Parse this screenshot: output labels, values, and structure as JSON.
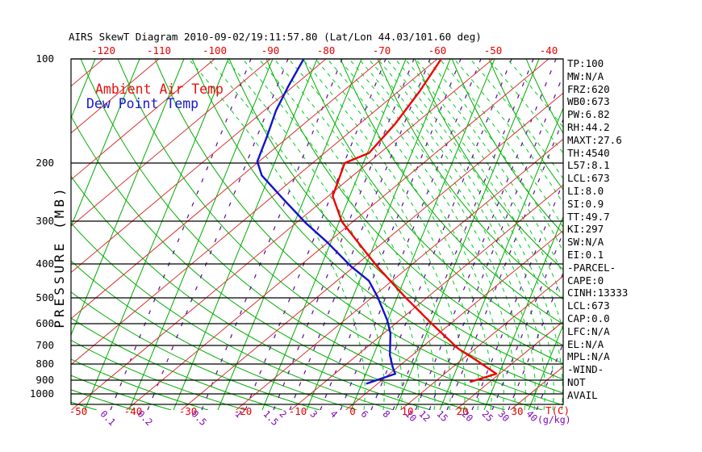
{
  "title": "AIRS SkewT Diagram 2010-09-02/19:11:57.80 (Lat/Lon 44.03/101.60 deg)",
  "legend": {
    "air_temp_label": "Ambient Air Temp",
    "dew_point_label": "Dew Point Temp"
  },
  "axes": {
    "pressure_axis_label": "PRESSURE (MB)",
    "pressure_ticks": [
      "100",
      "200",
      "300",
      "400",
      "500",
      "600",
      "700",
      "800",
      "900",
      "1000"
    ],
    "top_temp_ticks": [
      "-120",
      "-110",
      "-100",
      "-90",
      "-80",
      "-70",
      "-60",
      "-50",
      "-40"
    ],
    "bottom_temp_ticks": [
      "-50",
      "-40",
      "-30",
      "-20",
      "-10",
      "0",
      "10",
      "20",
      "30"
    ],
    "temp_unit_label": "T(C)",
    "mixing_ratio_ticks": [
      "0.1",
      "0.2",
      "0.5",
      "1",
      "1.5",
      "2",
      "3",
      "4",
      "6",
      "8",
      "10",
      "12",
      "15",
      "20",
      "25",
      "30",
      "40"
    ],
    "mixing_ratio_unit_label": "(g/kg)"
  },
  "stats_panel": [
    "TP:100",
    "MW:N/A",
    "FRZ:620",
    "WB0:673",
    "PW:6.82",
    "RH:44.2",
    "MAXT:27.6",
    "TH:4540",
    "L57:8.1",
    "LCL:673",
    "LI:8.0",
    "SI:0.9",
    "TT:49.7",
    "KI:297",
    "SW:N/A",
    "EI:0.1",
    "-PARCEL-",
    "CAPE:0",
    "CINH:13333",
    "LCL:673",
    "CAP:0.0",
    "LFC:N/A",
    "EL:N/A",
    "MPL:N/A",
    "-WIND-",
    "NOT",
    "AVAIL"
  ],
  "colors": {
    "isotherm": "#d83232",
    "dry_adiabat": "#00ad00",
    "steep_green_line": "#00ad00",
    "moist_adiabat_dashed": "#00cc22",
    "mixing_ratio_line": "#5a0a96",
    "frame": "#000000",
    "air_temp_curve": "#f00000",
    "dew_point_curve": "#1212cc",
    "temp_label_red": "#e80000",
    "mixing_label_purple": "#7d05b3"
  },
  "chart_data": {
    "type": "line",
    "title": "AIRS SkewT Diagram 2010-09-02/19:11:57.80 (Lat/Lon 44.03/101.60 deg)",
    "x_axis": {
      "label": "T(C)",
      "bottom_tick_range": [
        -50,
        30
      ],
      "top_tick_range": [
        -120,
        -40
      ],
      "skewed": true
    },
    "y_axis": {
      "label": "PRESSURE (MB)",
      "scale": "log",
      "ticks": [
        100,
        200,
        300,
        400,
        500,
        600,
        700,
        800,
        900,
        1000
      ]
    },
    "mixing_ratio_axis": {
      "unit": "g/kg",
      "ticks": [
        0.1,
        0.2,
        0.5,
        1,
        1.5,
        2,
        3,
        4,
        6,
        8,
        10,
        12,
        15,
        20,
        25,
        30,
        40
      ]
    },
    "series": [
      {
        "name": "Ambient Air Temp",
        "color": "#f00000",
        "point_format": [
          "pressure_mb",
          "temp_c"
        ],
        "points": [
          [
            100,
            -59.3
          ],
          [
            124,
            -56.2
          ],
          [
            154,
            -53.6
          ],
          [
            187,
            -52.0
          ],
          [
            200,
            -54.2
          ],
          [
            252,
            -49.2
          ],
          [
            301,
            -42.0
          ],
          [
            365,
            -31.7
          ],
          [
            407,
            -25.8
          ],
          [
            499,
            -13.9
          ],
          [
            602,
            -3.2
          ],
          [
            716,
            6.9
          ],
          [
            782,
            13.1
          ],
          [
            859,
            19.4
          ],
          [
            911,
            16.5
          ]
        ]
      },
      {
        "name": "Dew Point Temp",
        "color": "#1212cc",
        "point_format": [
          "pressure_mb",
          "temp_c"
        ],
        "points": [
          [
            100,
            -84.0
          ],
          [
            120,
            -80.9
          ],
          [
            141,
            -77.9
          ],
          [
            168,
            -73.9
          ],
          [
            198,
            -70.3
          ],
          [
            218,
            -66.5
          ],
          [
            259,
            -57.1
          ],
          [
            305,
            -48.0
          ],
          [
            345,
            -40.3
          ],
          [
            407,
            -30.5
          ],
          [
            447,
            -24.2
          ],
          [
            497,
            -19.1
          ],
          [
            586,
            -12.2
          ],
          [
            642,
            -8.8
          ],
          [
            750,
            -4.1
          ],
          [
            819,
            -0.9
          ],
          [
            859,
            1.0
          ],
          [
            923,
            -2.0
          ]
        ]
      }
    ]
  }
}
